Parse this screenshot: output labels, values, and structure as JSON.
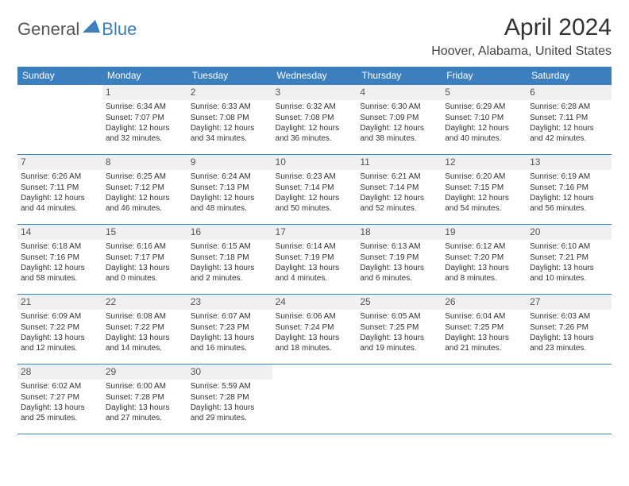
{
  "logo": {
    "part1": "General",
    "part2": "Blue"
  },
  "title": "April 2024",
  "location": "Hoover, Alabama, United States",
  "colors": {
    "brand": "#3b7fbf",
    "headerRowBg": "#eef0f2"
  },
  "weekdays": [
    "Sunday",
    "Monday",
    "Tuesday",
    "Wednesday",
    "Thursday",
    "Friday",
    "Saturday"
  ],
  "startDayOffset": 1,
  "days": [
    {
      "n": 1,
      "sunrise": "6:34 AM",
      "sunset": "7:07 PM",
      "daylight": "12 hours and 32 minutes."
    },
    {
      "n": 2,
      "sunrise": "6:33 AM",
      "sunset": "7:08 PM",
      "daylight": "12 hours and 34 minutes."
    },
    {
      "n": 3,
      "sunrise": "6:32 AM",
      "sunset": "7:08 PM",
      "daylight": "12 hours and 36 minutes."
    },
    {
      "n": 4,
      "sunrise": "6:30 AM",
      "sunset": "7:09 PM",
      "daylight": "12 hours and 38 minutes."
    },
    {
      "n": 5,
      "sunrise": "6:29 AM",
      "sunset": "7:10 PM",
      "daylight": "12 hours and 40 minutes."
    },
    {
      "n": 6,
      "sunrise": "6:28 AM",
      "sunset": "7:11 PM",
      "daylight": "12 hours and 42 minutes."
    },
    {
      "n": 7,
      "sunrise": "6:26 AM",
      "sunset": "7:11 PM",
      "daylight": "12 hours and 44 minutes."
    },
    {
      "n": 8,
      "sunrise": "6:25 AM",
      "sunset": "7:12 PM",
      "daylight": "12 hours and 46 minutes."
    },
    {
      "n": 9,
      "sunrise": "6:24 AM",
      "sunset": "7:13 PM",
      "daylight": "12 hours and 48 minutes."
    },
    {
      "n": 10,
      "sunrise": "6:23 AM",
      "sunset": "7:14 PM",
      "daylight": "12 hours and 50 minutes."
    },
    {
      "n": 11,
      "sunrise": "6:21 AM",
      "sunset": "7:14 PM",
      "daylight": "12 hours and 52 minutes."
    },
    {
      "n": 12,
      "sunrise": "6:20 AM",
      "sunset": "7:15 PM",
      "daylight": "12 hours and 54 minutes."
    },
    {
      "n": 13,
      "sunrise": "6:19 AM",
      "sunset": "7:16 PM",
      "daylight": "12 hours and 56 minutes."
    },
    {
      "n": 14,
      "sunrise": "6:18 AM",
      "sunset": "7:16 PM",
      "daylight": "12 hours and 58 minutes."
    },
    {
      "n": 15,
      "sunrise": "6:16 AM",
      "sunset": "7:17 PM",
      "daylight": "13 hours and 0 minutes."
    },
    {
      "n": 16,
      "sunrise": "6:15 AM",
      "sunset": "7:18 PM",
      "daylight": "13 hours and 2 minutes."
    },
    {
      "n": 17,
      "sunrise": "6:14 AM",
      "sunset": "7:19 PM",
      "daylight": "13 hours and 4 minutes."
    },
    {
      "n": 18,
      "sunrise": "6:13 AM",
      "sunset": "7:19 PM",
      "daylight": "13 hours and 6 minutes."
    },
    {
      "n": 19,
      "sunrise": "6:12 AM",
      "sunset": "7:20 PM",
      "daylight": "13 hours and 8 minutes."
    },
    {
      "n": 20,
      "sunrise": "6:10 AM",
      "sunset": "7:21 PM",
      "daylight": "13 hours and 10 minutes."
    },
    {
      "n": 21,
      "sunrise": "6:09 AM",
      "sunset": "7:22 PM",
      "daylight": "13 hours and 12 minutes."
    },
    {
      "n": 22,
      "sunrise": "6:08 AM",
      "sunset": "7:22 PM",
      "daylight": "13 hours and 14 minutes."
    },
    {
      "n": 23,
      "sunrise": "6:07 AM",
      "sunset": "7:23 PM",
      "daylight": "13 hours and 16 minutes."
    },
    {
      "n": 24,
      "sunrise": "6:06 AM",
      "sunset": "7:24 PM",
      "daylight": "13 hours and 18 minutes."
    },
    {
      "n": 25,
      "sunrise": "6:05 AM",
      "sunset": "7:25 PM",
      "daylight": "13 hours and 19 minutes."
    },
    {
      "n": 26,
      "sunrise": "6:04 AM",
      "sunset": "7:25 PM",
      "daylight": "13 hours and 21 minutes."
    },
    {
      "n": 27,
      "sunrise": "6:03 AM",
      "sunset": "7:26 PM",
      "daylight": "13 hours and 23 minutes."
    },
    {
      "n": 28,
      "sunrise": "6:02 AM",
      "sunset": "7:27 PM",
      "daylight": "13 hours and 25 minutes."
    },
    {
      "n": 29,
      "sunrise": "6:00 AM",
      "sunset": "7:28 PM",
      "daylight": "13 hours and 27 minutes."
    },
    {
      "n": 30,
      "sunrise": "5:59 AM",
      "sunset": "7:28 PM",
      "daylight": "13 hours and 29 minutes."
    }
  ],
  "labels": {
    "sunrise": "Sunrise:",
    "sunset": "Sunset:",
    "daylight": "Daylight:"
  }
}
